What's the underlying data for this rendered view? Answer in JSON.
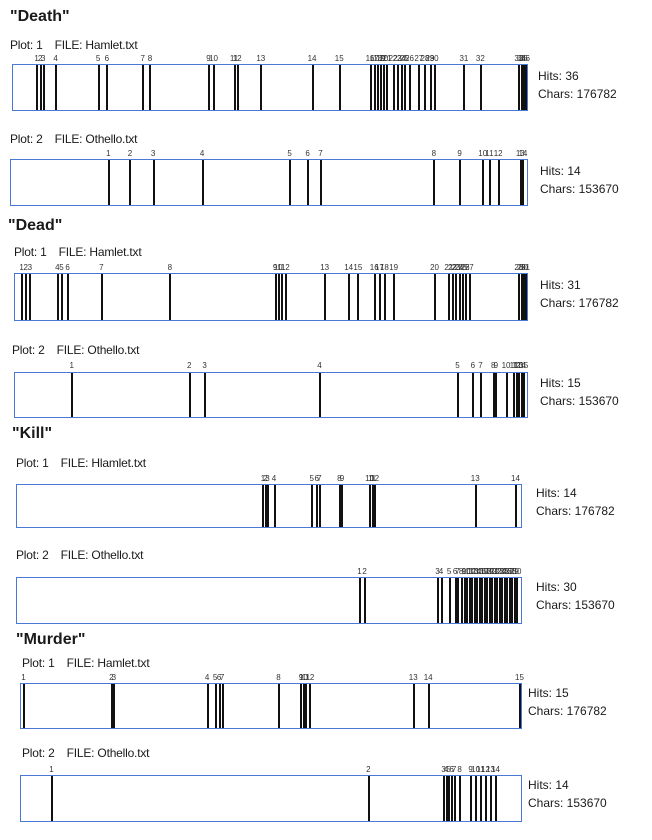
{
  "sections": [
    {
      "title": "\"Death\"",
      "plots": [
        {
          "plot_label": "Plot: 1",
          "file_label": "FILE: Hamlet.txt",
          "hits_label": "Hits: 36",
          "chars_label": "Chars: 176782",
          "total_chars": 176782,
          "tick_labels": [
            "1",
            "2",
            "3",
            "4",
            "5",
            "6",
            "7",
            "8",
            "9",
            "10",
            "11",
            "12",
            "13",
            "14",
            "15",
            "16",
            "17",
            "18",
            "19",
            "20",
            "21",
            "22",
            "23",
            "24",
            "25",
            "26",
            "27",
            "28",
            "29",
            "30",
            "31",
            "32",
            "33",
            "34",
            "35",
            "36"
          ],
          "hits": [
            0.045,
            0.052,
            0.058,
            0.082,
            0.165,
            0.182,
            0.252,
            0.266,
            0.38,
            0.39,
            0.43,
            0.436,
            0.482,
            0.582,
            0.635,
            0.695,
            0.703,
            0.71,
            0.716,
            0.722,
            0.728,
            0.74,
            0.748,
            0.756,
            0.762,
            0.772,
            0.79,
            0.802,
            0.812,
            0.82,
            0.878,
            0.91,
            0.985,
            0.99,
            0.994,
            0.998
          ]
        },
        {
          "plot_label": "Plot: 2",
          "file_label": "FILE: Othello.txt",
          "hits_label": "Hits: 14",
          "chars_label": "Chars: 153670",
          "total_chars": 153670,
          "tick_labels": [
            "1",
            "2",
            "3",
            "4",
            "5",
            "6",
            "7",
            "8",
            "9",
            "10",
            "11",
            "12",
            "13",
            "14"
          ],
          "hits": [
            0.188,
            0.23,
            0.275,
            0.37,
            0.54,
            0.575,
            0.6,
            0.82,
            0.87,
            0.915,
            0.928,
            0.945,
            0.988,
            0.993
          ]
        }
      ]
    },
    {
      "title": "\"Dead\"",
      "plots": [
        {
          "plot_label": "Plot: 1",
          "file_label": "FILE: Hamlet.txt",
          "hits_label": "Hits: 31",
          "chars_label": "Chars: 176782",
          "total_chars": 176782,
          "tick_labels": [
            "1",
            "2",
            "3",
            "4",
            "5",
            "6",
            "7",
            "8",
            "9",
            "10",
            "11",
            "12",
            "13",
            "14",
            "15",
            "16",
            "17",
            "18",
            "19",
            "20",
            "21",
            "22",
            "23",
            "24",
            "25",
            "26",
            "27",
            "28",
            "29",
            "30",
            "31"
          ],
          "hits": [
            0.012,
            0.02,
            0.028,
            0.082,
            0.09,
            0.102,
            0.168,
            0.302,
            0.508,
            0.514,
            0.52,
            0.528,
            0.605,
            0.652,
            0.67,
            0.702,
            0.712,
            0.722,
            0.74,
            0.82,
            0.848,
            0.855,
            0.862,
            0.868,
            0.875,
            0.88,
            0.888,
            0.985,
            0.99,
            0.994,
            0.998
          ]
        },
        {
          "plot_label": "Plot: 2",
          "file_label": "FILE: Othello.txt",
          "hits_label": "Hits: 15",
          "chars_label": "Chars: 153670",
          "total_chars": 153670,
          "tick_labels": [
            "1",
            "2",
            "3",
            "4",
            "5",
            "6",
            "7",
            "8",
            "9",
            "10",
            "11",
            "12",
            "13",
            "14",
            "15"
          ],
          "hits": [
            0.11,
            0.34,
            0.37,
            0.595,
            0.865,
            0.895,
            0.91,
            0.935,
            0.94,
            0.96,
            0.975,
            0.98,
            0.985,
            0.99,
            0.995
          ]
        }
      ]
    },
    {
      "title": "\"Kill\"",
      "plots": [
        {
          "plot_label": "Plot: 1",
          "file_label": "FILE: Hlamlet.txt",
          "hits_label": "Hits: 14",
          "chars_label": "Chars: 176782",
          "total_chars": 176782,
          "tick_labels": [
            "1",
            "2",
            "3",
            "4",
            "5",
            "6",
            "7",
            "8",
            "9",
            "10",
            "11",
            "12",
            "13",
            "14"
          ],
          "hits": [
            0.488,
            0.493,
            0.497,
            0.51,
            0.585,
            0.595,
            0.6,
            0.64,
            0.645,
            0.7,
            0.705,
            0.71,
            0.91,
            0.99
          ]
        },
        {
          "plot_label": "Plot: 2",
          "file_label": "FILE: Othello.txt",
          "hits_label": "Hits: 30",
          "chars_label": "Chars: 153670",
          "total_chars": 153670,
          "tick_labels": [
            "1",
            "2",
            "3",
            "4",
            "5",
            "6",
            "7",
            "8",
            "9",
            "10",
            "11",
            "12",
            "13",
            "14",
            "15",
            "16",
            "17",
            "18",
            "19",
            "20",
            "21",
            "22",
            "23",
            "24",
            "25",
            "26",
            "27",
            "28",
            "29",
            "30"
          ],
          "hits": [
            0.68,
            0.69,
            0.835,
            0.842,
            0.858,
            0.87,
            0.875,
            0.882,
            0.888,
            0.892,
            0.898,
            0.903,
            0.908,
            0.913,
            0.918,
            0.923,
            0.928,
            0.933,
            0.938,
            0.943,
            0.948,
            0.953,
            0.958,
            0.963,
            0.968,
            0.973,
            0.978,
            0.983,
            0.988,
            0.993
          ]
        }
      ]
    },
    {
      "title": "\"Murder\"",
      "plots": [
        {
          "plot_label": "Plot: 1",
          "file_label": "FILE: Hamlet.txt",
          "hits_label": "Hits: 15",
          "chars_label": "Chars: 176782",
          "total_chars": 176782,
          "tick_labels": [
            "1",
            "2",
            "3",
            "4",
            "5",
            "6",
            "7",
            "8",
            "9",
            "10",
            "11",
            "12",
            "13",
            "14",
            "15"
          ],
          "hits": [
            0.004,
            0.18,
            0.185,
            0.372,
            0.388,
            0.396,
            0.402,
            0.515,
            0.56,
            0.565,
            0.57,
            0.578,
            0.785,
            0.815,
            0.998
          ]
        },
        {
          "plot_label": "Plot: 2",
          "file_label": "FILE: Othello.txt",
          "hits_label": "Hits: 14",
          "chars_label": "Chars: 153670",
          "total_chars": 153670,
          "tick_labels": [
            "1",
            "2",
            "3",
            "4",
            "5",
            "6",
            "7",
            "8",
            "9",
            "10",
            "11",
            "12",
            "13",
            "14"
          ],
          "hits": [
            0.06,
            0.695,
            0.846,
            0.851,
            0.856,
            0.862,
            0.867,
            0.878,
            0.9,
            0.91,
            0.92,
            0.93,
            0.94,
            0.95
          ]
        }
      ]
    }
  ]
}
